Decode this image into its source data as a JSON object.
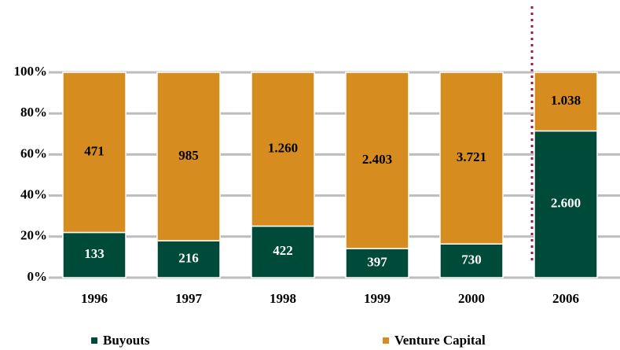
{
  "chart_data": {
    "type": "bar",
    "stacked": "percent",
    "categories": [
      "1996",
      "1997",
      "1998",
      "1999",
      "2000",
      "2006"
    ],
    "series": [
      {
        "name": "Buyouts",
        "color": "#004a3a",
        "values": [
          133,
          216,
          422,
          397,
          730,
          2600
        ],
        "value_labels": [
          "133",
          "216",
          "422",
          "397",
          "730",
          "2.600"
        ],
        "label_color": "#ffffff"
      },
      {
        "name": "Venture Capital",
        "color": "#d68c1f",
        "values": [
          471,
          985,
          1260,
          2403,
          3721,
          1038
        ],
        "value_labels": [
          "471",
          "985",
          "1.260",
          "2.403",
          "3.721",
          "1.038"
        ],
        "label_color": "#000000"
      }
    ],
    "ylim": [
      0,
      100
    ],
    "yticks": [
      {
        "value": 0,
        "label": "0%"
      },
      {
        "value": 20,
        "label": "20%"
      },
      {
        "value": 40,
        "label": "40%"
      },
      {
        "value": 60,
        "label": "60%"
      },
      {
        "value": 80,
        "label": "80%"
      },
      {
        "value": 100,
        "label": "100%"
      }
    ],
    "grid": true,
    "legend": "bottom"
  }
}
